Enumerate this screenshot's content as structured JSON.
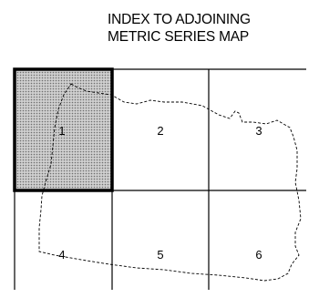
{
  "title": {
    "line1": "INDEX TO ADJOINING",
    "line2": "METRIC SERIES MAP"
  },
  "grid": {
    "cells": [
      {
        "label": "1",
        "highlighted": true
      },
      {
        "label": "2",
        "highlighted": false
      },
      {
        "label": "3",
        "highlighted": false
      },
      {
        "label": "4",
        "highlighted": false
      },
      {
        "label": "5",
        "highlighted": false
      },
      {
        "label": "6",
        "highlighted": false
      }
    ]
  },
  "colors": {
    "line": "#000000",
    "highlight_fill": "#cfcfcf",
    "highlight_dots": "#6e6e6e"
  }
}
